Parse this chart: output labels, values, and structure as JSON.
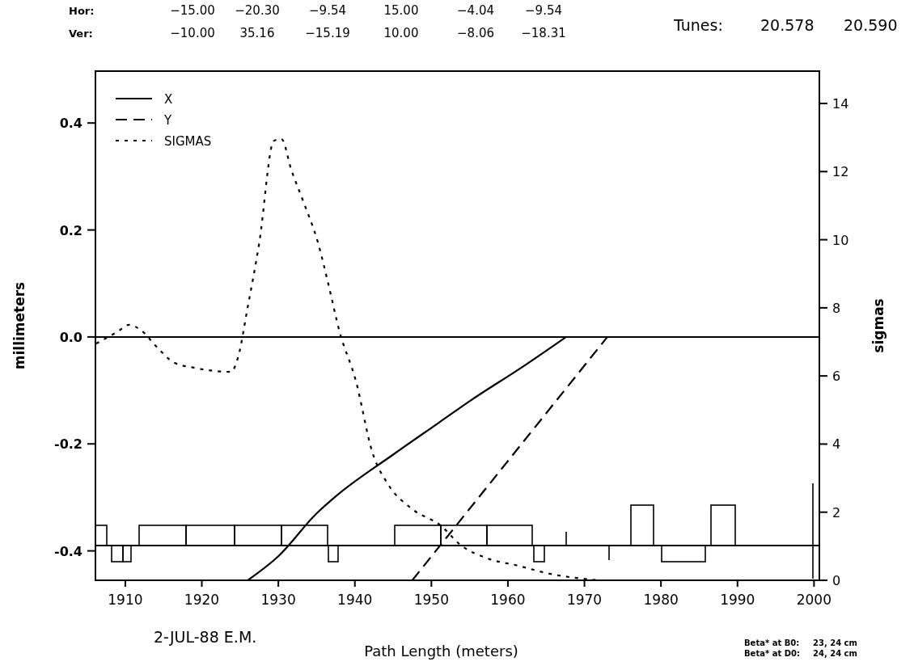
{
  "chart_data": {
    "type": "line",
    "xlabel": "Path Length (meters)",
    "ylabel": "millimeters",
    "y2label": "sigmas",
    "xlim": [
      1906.1,
      2000.7
    ],
    "xticks": [
      1910,
      1920,
      1930,
      1940,
      1950,
      1960,
      1970,
      1980,
      1990,
      2000
    ],
    "ylim": [
      -0.455,
      0.497
    ],
    "yticks": [
      0.4,
      0.2,
      {
        "value": 0,
        "label": "0.0"
      },
      -0.2,
      -0.4
    ],
    "y2lim": [
      0,
      14.95
    ],
    "y2ticks": [
      0,
      2,
      4,
      6,
      8,
      10,
      12,
      14
    ],
    "legend": "top left",
    "grid": false,
    "series": [
      {
        "name": "X",
        "color": "#000000",
        "line_style": "solid",
        "x": [
          1926,
          1930,
          1935,
          1937.5,
          1945,
          1951,
          1955,
          1962,
          1967.6
        ],
        "values": [
          -0.455,
          -0.41,
          -0.33,
          -0.298,
          -0.22,
          -0.16,
          -0.12,
          -0.055,
          0
        ]
      },
      {
        "name": "Y",
        "color": "#000000",
        "line_style": "dashed",
        "x": [
          1947.5,
          1973
        ],
        "values": [
          -0.455,
          0
        ]
      },
      {
        "name": "SIGMAS",
        "color": "#000000",
        "line_style": "dotted",
        "axis": "y2",
        "x": [
          1906.2,
          1909,
          1910.5,
          1912,
          1914.2,
          1916.3,
          1919,
          1923.8,
          1924.8,
          1925.9,
          1927.5,
          1929.4,
          1930.4,
          1931.7,
          1933.3,
          1935.2,
          1936.5,
          1938,
          1940.1,
          1942.3,
          1944.4,
          1947.5,
          1951.2,
          1953.9,
          1957.1,
          1961.3,
          1965.5,
          1971.9
        ],
        "values": [
          6.95,
          7.3,
          7.5,
          7.35,
          6.83,
          6.4,
          6.24,
          6.12,
          6.6,
          7.9,
          9.9,
          12.9,
          12.96,
          12.05,
          11.1,
          9.9,
          8.73,
          7.3,
          5.88,
          3.75,
          2.8,
          2.09,
          1.61,
          1.02,
          0.66,
          0.43,
          0.19,
          0
        ]
      }
    ],
    "ref_lines": [
      {
        "axis": "y",
        "value": 0,
        "color": "#000000"
      },
      {
        "axis": "y",
        "value": -0.39,
        "color": "#000000"
      }
    ],
    "annotations": [
      "Hor:",
      "−15.00",
      "−20.30",
      "−9.54",
      "15.00",
      "−4.04",
      "−9.54",
      "Ver:",
      "−10.00",
      "35.16",
      "−15.19",
      "10.00",
      "−8.06",
      "−18.31",
      "Tunes:",
      "20.578",
      "20.590",
      "2-JUL-88 E.M.",
      "Beta* at B0:",
      "23, 24 cm",
      "Beta* at D0:",
      "24, 24 cm"
    ]
  }
}
